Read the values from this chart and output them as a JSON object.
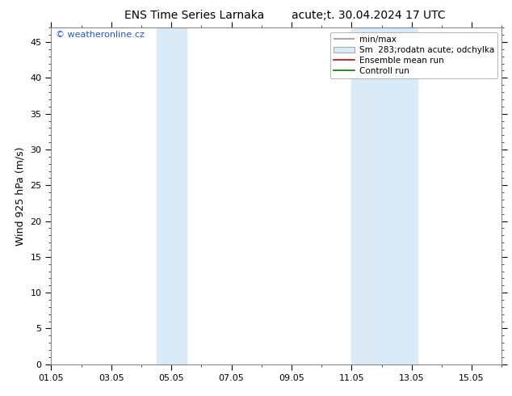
{
  "title_left": "ENS Time Series Larnaka",
  "title_right": "acute;t. 30.04.2024 17 UTC",
  "ylabel": "Wind 925 hPa (m/s)",
  "watermark": "© weatheronline.cz",
  "ylim": [
    0,
    47
  ],
  "yticks": [
    0,
    5,
    10,
    15,
    20,
    25,
    30,
    35,
    40,
    45
  ],
  "xtick_labels": [
    "01.05",
    "03.05",
    "05.05",
    "07.05",
    "09.05",
    "11.05",
    "13.05",
    "15.05"
  ],
  "xtick_positions": [
    0,
    2,
    4,
    6,
    8,
    10,
    12,
    14
  ],
  "shade_bands": [
    {
      "start": 3.5,
      "end": 4.5
    },
    {
      "start": 10.0,
      "end": 12.2
    }
  ],
  "shade_color": "#daeaf7",
  "background_color": "#ffffff",
  "plot_bg_color": "#ffffff",
  "border_color": "#888888",
  "title_fontsize": 10,
  "tick_fontsize": 8,
  "ylabel_fontsize": 9,
  "watermark_color": "#2255cc",
  "watermark_fontsize": 8,
  "legend_fontsize": 7.5,
  "minmax_color": "#aaaaaa",
  "spread_color": "#daeaf7",
  "spread_edge_color": "#aaaaaa",
  "ensemble_color": "#cc0000",
  "control_color": "#007700"
}
